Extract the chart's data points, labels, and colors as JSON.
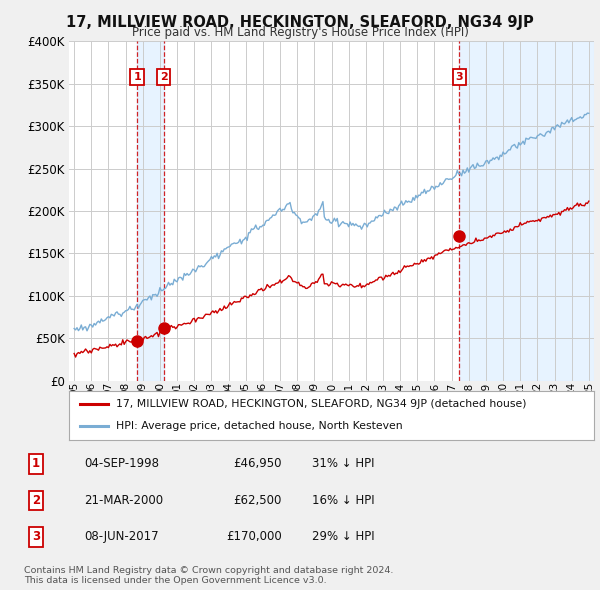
{
  "title": "17, MILLVIEW ROAD, HECKINGTON, SLEAFORD, NG34 9JP",
  "subtitle": "Price paid vs. HM Land Registry's House Price Index (HPI)",
  "red_label": "17, MILLVIEW ROAD, HECKINGTON, SLEAFORD, NG34 9JP (detached house)",
  "blue_label": "HPI: Average price, detached house, North Kesteven",
  "sales": [
    {
      "num": 1,
      "date": "04-SEP-1998",
      "price": 46950,
      "pct": "31%",
      "year": 1998.67
    },
    {
      "num": 2,
      "date": "21-MAR-2000",
      "price": 62500,
      "pct": "16%",
      "year": 2000.22
    },
    {
      "num": 3,
      "date": "08-JUN-2017",
      "price": 170000,
      "pct": "29%",
      "year": 2017.44
    }
  ],
  "ylim": [
    0,
    400000
  ],
  "yticks": [
    0,
    50000,
    100000,
    150000,
    200000,
    250000,
    300000,
    350000,
    400000
  ],
  "ytick_labels": [
    "£0",
    "£50K",
    "£100K",
    "£150K",
    "£200K",
    "£250K",
    "£300K",
    "£350K",
    "£400K"
  ],
  "xlim": [
    1994.7,
    2025.3
  ],
  "xtick_years": [
    1995,
    1996,
    1997,
    1998,
    1999,
    2000,
    2001,
    2002,
    2003,
    2004,
    2005,
    2006,
    2007,
    2008,
    2009,
    2010,
    2011,
    2012,
    2013,
    2014,
    2015,
    2016,
    2017,
    2018,
    2019,
    2020,
    2021,
    2022,
    2023,
    2024,
    2025
  ],
  "copyright_text": "Contains HM Land Registry data © Crown copyright and database right 2024.\nThis data is licensed under the Open Government Licence v3.0.",
  "bg_color": "#f0f0f0",
  "plot_bg_color": "#ffffff",
  "grid_color": "#cccccc",
  "red_color": "#cc0000",
  "blue_color": "#7aadd4",
  "shade_color": "#ddeeff"
}
